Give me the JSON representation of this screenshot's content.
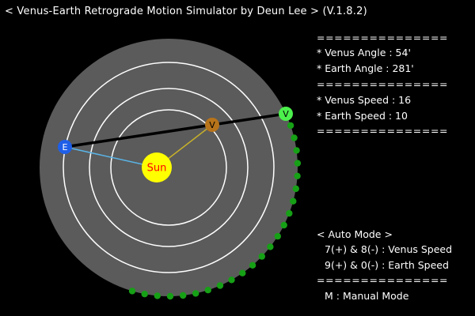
{
  "window": {
    "title": "< Venus-Earth Retrograde Motion Simulator by Deun Lee > (V.1.8.2)"
  },
  "colors": {
    "background": "#000000",
    "space_disc": "#5b5b5b",
    "orbit": "#ffffff",
    "sun_fill": "#ffff00",
    "sun_text": "#ff0000",
    "venus": "#b8741a",
    "earth": "#1f5fe8",
    "projection": "#4cf04c",
    "trail": "#16a016",
    "earth_sun_link": "#5ab4e6",
    "venus_sun_link": "#c8b22a",
    "sight_line": "#000000",
    "text": "#ffffff"
  },
  "bodies": {
    "sun_label": "Sun",
    "venus_label": "V",
    "earth_label": "E",
    "projection_label": "V"
  },
  "status": {
    "separator": "===============",
    "venus_angle_label": "* Venus Angle : 54'",
    "earth_angle_label": "* Earth Angle : 281'",
    "venus_speed_label": "* Venus Speed : 16",
    "earth_speed_label": "* Earth Speed : 10"
  },
  "mode": {
    "auto_mode_label": "< Auto Mode >",
    "venus_speed_keys": "7(+) & 8(-) : Venus Speed",
    "earth_speed_keys": "9(+) & 0(-) : Earth Speed",
    "manual_mode_hint": "M : Manual Mode"
  }
}
